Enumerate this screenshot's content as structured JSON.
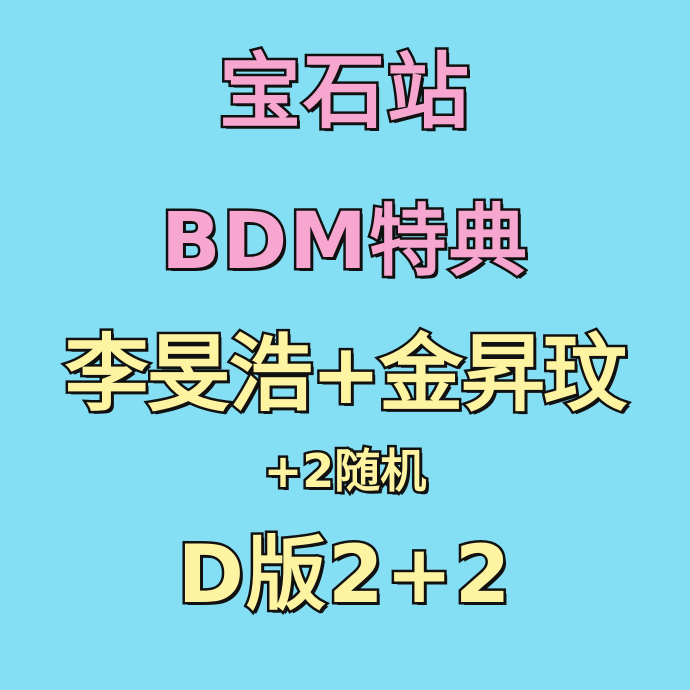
{
  "background_color": "#85dff4",
  "lines": [
    {
      "text": "宝石站",
      "color": "#f7a6cf"
    },
    {
      "text": "BDM特典",
      "color": "#f7a6cf"
    },
    {
      "text": "李旻浩+金昇玟",
      "color": "#fdf3a0"
    },
    {
      "text": "+2随机",
      "color": "#fdf3a0"
    },
    {
      "text": "D版2+2",
      "color": "#fdf3a0"
    }
  ]
}
